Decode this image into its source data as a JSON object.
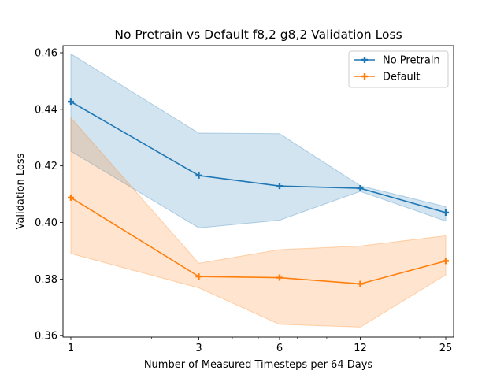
{
  "chart_data": {
    "type": "line",
    "title": "No Pretrain vs Default f8,2 g8,2 Validation Loss",
    "xlabel": "Number of Measured Timesteps per 64 Days",
    "ylabel": "Validation Loss",
    "x_scale": "log",
    "x": [
      1,
      3,
      6,
      12,
      25
    ],
    "x_tick_labels": [
      "1",
      "3",
      "6",
      "12",
      "25"
    ],
    "ylim": [
      0.3595,
      0.4625
    ],
    "y_ticks": [
      0.36,
      0.38,
      0.4,
      0.42,
      0.44,
      0.46
    ],
    "y_tick_labels": [
      "0.36",
      "0.38",
      "0.40",
      "0.42",
      "0.44",
      "0.46"
    ],
    "grid": false,
    "legend_position": "top-right",
    "series": [
      {
        "name": "No Pretrain",
        "color": "#1f77b4",
        "marker": "plus",
        "values": [
          0.4427,
          0.4166,
          0.4129,
          0.4121,
          0.4035
        ],
        "band_upper": [
          0.4596,
          0.4316,
          0.4314,
          0.413,
          0.4056
        ],
        "band_lower": [
          0.4252,
          0.3981,
          0.4008,
          0.411,
          0.4005
        ]
      },
      {
        "name": "Default",
        "color": "#ff7f0e",
        "marker": "plus",
        "values": [
          0.4088,
          0.3809,
          0.3805,
          0.3783,
          0.3864
        ],
        "band_upper": [
          0.437,
          0.3856,
          0.3904,
          0.3917,
          0.3953
        ],
        "band_lower": [
          0.389,
          0.3769,
          0.364,
          0.363,
          0.3815
        ]
      }
    ]
  }
}
